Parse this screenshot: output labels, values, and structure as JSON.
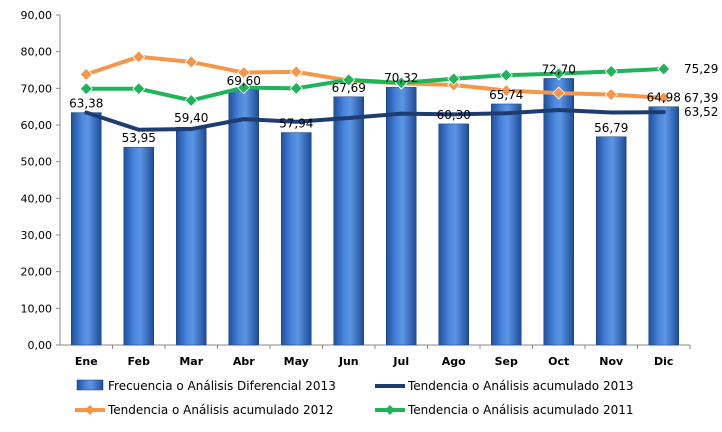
{
  "chart_data": {
    "type": "bar",
    "categories": [
      "Ene",
      "Feb",
      "Mar",
      "Abr",
      "May",
      "Jun",
      "Jul",
      "Ago",
      "Sep",
      "Oct",
      "Nov",
      "Dic"
    ],
    "ylim": [
      0,
      90
    ],
    "yticks": [
      "0,00",
      "10,00",
      "20,00",
      "30,00",
      "40,00",
      "50,00",
      "60,00",
      "70,00",
      "80,00",
      "90,00"
    ],
    "grid": false,
    "legend_position": "bottom",
    "series": [
      {
        "name": "Frecuencia o Análisis Diferencial 2013",
        "kind": "bar",
        "color": "#3a70c4",
        "values": [
          63.38,
          53.95,
          59.4,
          69.6,
          57.94,
          67.69,
          70.32,
          60.3,
          65.74,
          72.7,
          56.79,
          64.98
        ],
        "labels": [
          "63,38",
          "53,95",
          "59,40",
          "69,60",
          "57,94",
          "67,69",
          "70,32",
          "60,30",
          "65,74",
          "72,70",
          "56,79",
          "64,98"
        ]
      },
      {
        "name": "Tendencia o Análisis acumulado 2013",
        "kind": "line",
        "color": "#1f3c70",
        "marker": "none",
        "values": [
          63.4,
          58.7,
          58.9,
          61.6,
          60.9,
          61.9,
          63.1,
          62.9,
          63.2,
          64.1,
          63.4,
          63.52
        ],
        "end_label": "63,52"
      },
      {
        "name": "Tendencia o Análisis acumulado 2012",
        "kind": "line",
        "color": "#f4974a",
        "marker": "diamond",
        "values": [
          73.8,
          78.6,
          77.2,
          74.3,
          74.5,
          72.1,
          71.4,
          70.9,
          69.4,
          68.7,
          68.3,
          67.39
        ],
        "end_label": "67,39"
      },
      {
        "name": "Tendencia o Análisis acumulado 2011",
        "kind": "line",
        "color": "#1fb35a",
        "marker": "diamond",
        "values": [
          69.9,
          69.9,
          66.7,
          70.2,
          70.0,
          72.3,
          71.5,
          72.6,
          73.6,
          74.0,
          74.6,
          75.29
        ],
        "end_label": "75,29"
      }
    ]
  }
}
